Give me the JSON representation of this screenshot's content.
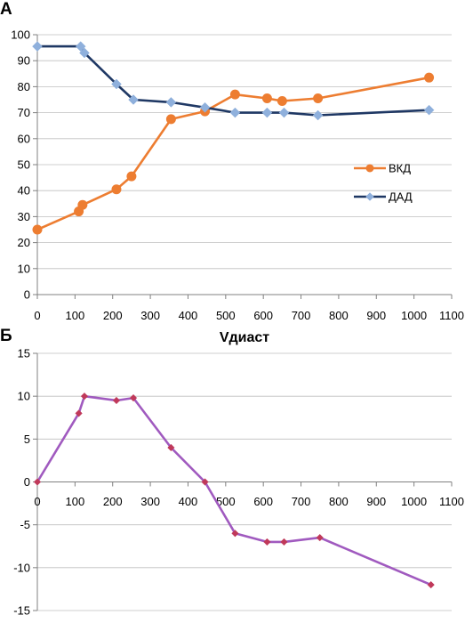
{
  "chart_data": [
    {
      "type": "line",
      "panel_label": "А",
      "title": "",
      "xlabel": "",
      "ylabel": "",
      "xlim": [
        0,
        1100
      ],
      "ylim": [
        0,
        100
      ],
      "xticks": [
        "0",
        "100",
        "200",
        "300",
        "400",
        "500",
        "600",
        "700",
        "800",
        "900",
        "1000",
        "1100"
      ],
      "yticks": [
        "0",
        "10",
        "20",
        "30",
        "40",
        "50",
        "60",
        "70",
        "80",
        "90",
        "100"
      ],
      "grid": "horizontal",
      "legend_position": "right",
      "series": [
        {
          "name": "ВКД",
          "color": "#ed7d31",
          "marker": "circle",
          "points": [
            [
              0,
              25
            ],
            [
              110,
              32
            ],
            [
              120,
              34.5
            ],
            [
              210,
              40.5
            ],
            [
              250,
              45.5
            ],
            [
              355,
              67.5
            ],
            [
              445,
              70.5
            ],
            [
              525,
              77
            ],
            [
              610,
              75.5
            ],
            [
              650,
              74.5
            ],
            [
              745,
              75.5
            ],
            [
              1040,
              83.5
            ]
          ]
        },
        {
          "name": "ДАД",
          "color": "#1f3864",
          "marker_color": "#8fb0dc",
          "marker": "diamond",
          "points": [
            [
              0,
              95.5
            ],
            [
              115,
              95.5
            ],
            [
              125,
              93
            ],
            [
              210,
              81
            ],
            [
              255,
              75
            ],
            [
              355,
              74
            ],
            [
              445,
              72
            ],
            [
              525,
              70
            ],
            [
              610,
              70
            ],
            [
              655,
              70
            ],
            [
              745,
              69
            ],
            [
              1040,
              71
            ]
          ]
        }
      ]
    },
    {
      "type": "line",
      "panel_label": "Б",
      "title": "Vдиаст",
      "xlabel": "",
      "ylabel": "",
      "xlim": [
        0,
        1100
      ],
      "ylim": [
        -15,
        15
      ],
      "xticks": [
        "0",
        "100",
        "200",
        "300",
        "400",
        "500",
        "600",
        "700",
        "800",
        "900",
        "1000",
        "1100"
      ],
      "yticks": [
        "-15",
        "-10",
        "-5",
        "0",
        "5",
        "10",
        "15"
      ],
      "grid": "horizontal",
      "series": [
        {
          "color": "#a05abf",
          "marker_color": "#c0395a",
          "marker": "diamond",
          "points": [
            [
              0,
              0
            ],
            [
              110,
              8
            ],
            [
              125,
              10
            ],
            [
              210,
              9.5
            ],
            [
              255,
              9.8
            ],
            [
              355,
              4
            ],
            [
              445,
              0
            ],
            [
              525,
              -6
            ],
            [
              610,
              -7
            ],
            [
              655,
              -7
            ],
            [
              750,
              -6.5
            ],
            [
              1045,
              -12
            ]
          ]
        }
      ]
    }
  ]
}
